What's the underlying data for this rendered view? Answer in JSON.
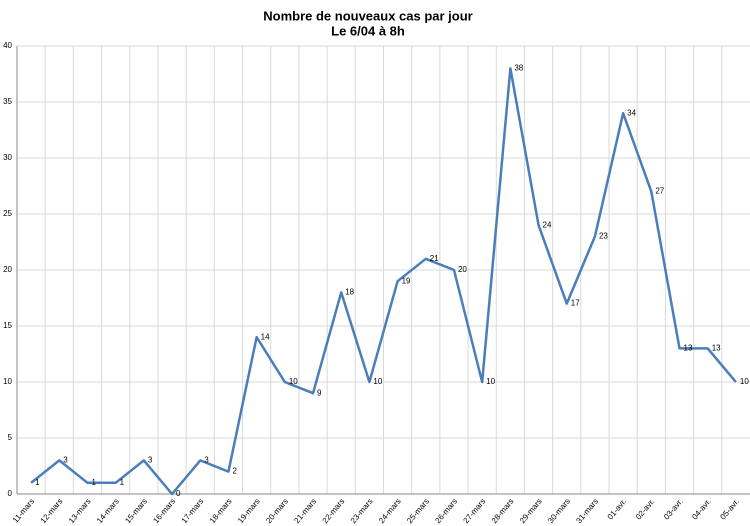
{
  "chart_data": {
    "type": "line",
    "title": "Nombre de nouveaux cas par jour",
    "subtitle": "Le 6/04 à 8h",
    "categories": [
      "11-mars",
      "12-mars",
      "13-mars",
      "14-mars",
      "15-mars",
      "16-mars",
      "17-mars",
      "18-mars",
      "19-mars",
      "20-mars",
      "21-mars",
      "22-mars",
      "23-mars",
      "24-mars",
      "25-mars",
      "26-mars",
      "27-mars",
      "28-mars",
      "29-mars",
      "30-mars",
      "31-mars",
      "01-avr.",
      "02-avr.",
      "03-avr.",
      "04-avr.",
      "05-avr."
    ],
    "values": [
      1,
      3,
      1,
      1,
      3,
      0,
      3,
      2,
      14,
      10,
      9,
      18,
      10,
      19,
      21,
      20,
      10,
      38,
      24,
      17,
      23,
      34,
      27,
      13,
      13,
      10
    ],
    "color": "#4a7ebb",
    "ylim": [
      0,
      40
    ],
    "yticks": [
      0,
      5,
      10,
      15,
      20,
      25,
      30,
      35,
      40
    ],
    "grid": true
  }
}
